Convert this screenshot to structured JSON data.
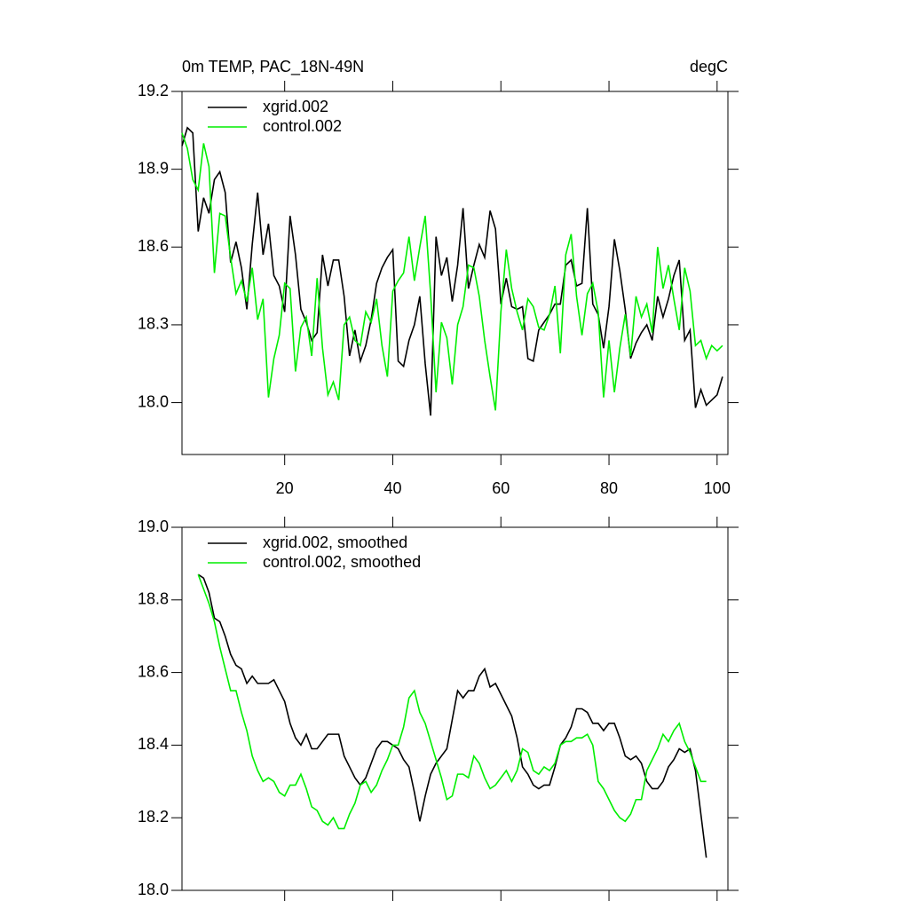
{
  "chart_data": [
    {
      "type": "line",
      "title": "0m TEMP, PAC_18N-49N",
      "units": "degC",
      "x": [
        1,
        2,
        3,
        4,
        5,
        6,
        7,
        8,
        9,
        10,
        11,
        12,
        13,
        14,
        15,
        16,
        17,
        18,
        19,
        20,
        21,
        22,
        23,
        24,
        25,
        26,
        27,
        28,
        29,
        30,
        31,
        32,
        33,
        34,
        35,
        36,
        37,
        38,
        39,
        40,
        41,
        42,
        43,
        44,
        45,
        46,
        47,
        48,
        49,
        50,
        51,
        52,
        53,
        54,
        55,
        56,
        57,
        58,
        59,
        60,
        61,
        62,
        63,
        64,
        65,
        66,
        67,
        68,
        69,
        70,
        71,
        72,
        73,
        74,
        75,
        76,
        77,
        78,
        79,
        80,
        81,
        82,
        83,
        84,
        85,
        86,
        87,
        88,
        89,
        90,
        91,
        92,
        93,
        94,
        95,
        96,
        97,
        98,
        99,
        100,
        101
      ],
      "series": [
        {
          "name": "xgrid.002",
          "color": "#000000",
          "values": [
            18.99,
            19.06,
            19.04,
            18.66,
            18.79,
            18.73,
            18.86,
            18.89,
            18.81,
            18.54,
            18.62,
            18.52,
            18.36,
            18.61,
            18.81,
            18.57,
            18.69,
            18.49,
            18.45,
            18.35,
            18.72,
            18.57,
            18.36,
            18.31,
            18.24,
            18.27,
            18.57,
            18.45,
            18.55,
            18.55,
            18.41,
            18.18,
            18.28,
            18.16,
            18.22,
            18.32,
            18.46,
            18.52,
            18.56,
            18.59,
            18.16,
            18.14,
            18.24,
            18.3,
            18.41,
            18.15,
            17.95,
            18.64,
            18.49,
            18.56,
            18.39,
            18.53,
            18.75,
            18.44,
            18.53,
            18.61,
            18.56,
            18.74,
            18.67,
            18.38,
            18.48,
            18.37,
            18.36,
            18.37,
            18.17,
            18.16,
            18.28,
            18.31,
            18.34,
            18.38,
            18.38,
            18.53,
            18.55,
            18.45,
            18.46,
            18.75,
            18.38,
            18.34,
            18.21,
            18.37,
            18.63,
            18.51,
            18.36,
            18.17,
            18.23,
            18.27,
            18.3,
            18.24,
            18.41,
            18.33,
            18.4,
            18.49,
            18.55,
            18.24,
            18.28,
            17.98,
            18.05,
            17.99,
            18.01,
            18.03,
            18.1
          ]
        },
        {
          "name": "control.002",
          "color": "#00ee00",
          "values": [
            19.04,
            18.98,
            18.86,
            18.82,
            19.0,
            18.91,
            18.5,
            18.73,
            18.72,
            18.56,
            18.42,
            18.47,
            18.39,
            18.52,
            18.32,
            18.4,
            18.02,
            18.17,
            18.26,
            18.46,
            18.44,
            18.12,
            18.29,
            18.33,
            18.18,
            18.48,
            18.21,
            18.03,
            18.08,
            18.01,
            18.3,
            18.33,
            18.24,
            18.22,
            18.35,
            18.31,
            18.4,
            18.22,
            18.1,
            18.43,
            18.47,
            18.5,
            18.64,
            18.47,
            18.6,
            18.72,
            18.42,
            18.04,
            18.31,
            18.25,
            18.07,
            18.3,
            18.37,
            18.53,
            18.52,
            18.41,
            18.24,
            18.1,
            17.97,
            18.35,
            18.59,
            18.44,
            18.35,
            18.28,
            18.4,
            18.37,
            18.29,
            18.28,
            18.34,
            18.45,
            18.19,
            18.57,
            18.65,
            18.41,
            18.26,
            18.42,
            18.46,
            18.35,
            18.02,
            18.24,
            18.04,
            18.21,
            18.34,
            18.18,
            18.41,
            18.33,
            18.38,
            18.27,
            18.6,
            18.44,
            18.53,
            18.4,
            18.28,
            18.52,
            18.43,
            18.22,
            18.24,
            18.17,
            18.22,
            18.2,
            18.22
          ]
        }
      ],
      "xlim": [
        1,
        102
      ],
      "xticks": [
        20,
        40,
        60,
        80,
        100
      ],
      "ylim": [
        17.8,
        19.2
      ],
      "yticks": [
        {
          "value": 18,
          "label": "18.0"
        },
        18.3,
        18.6,
        18.9,
        19.2
      ],
      "legend": "upper left"
    },
    {
      "type": "line",
      "x": [
        4,
        5,
        6,
        7,
        8,
        9,
        10,
        11,
        12,
        13,
        14,
        15,
        16,
        17,
        18,
        19,
        20,
        21,
        22,
        23,
        24,
        25,
        26,
        27,
        28,
        29,
        30,
        31,
        32,
        33,
        34,
        35,
        36,
        37,
        38,
        39,
        40,
        41,
        42,
        43,
        44,
        45,
        46,
        47,
        48,
        49,
        50,
        51,
        52,
        53,
        54,
        55,
        56,
        57,
        58,
        59,
        60,
        61,
        62,
        63,
        64,
        65,
        66,
        67,
        68,
        69,
        70,
        71,
        72,
        73,
        74,
        75,
        76,
        77,
        78,
        79,
        80,
        81,
        82,
        83,
        84,
        85,
        86,
        87,
        88,
        89,
        90,
        91,
        92,
        93,
        94,
        95,
        96,
        97,
        98
      ],
      "series": [
        {
          "name": "xgrid.002, smoothed",
          "color": "#000000",
          "values": [
            18.87,
            18.86,
            18.82,
            18.75,
            18.74,
            18.7,
            18.65,
            18.62,
            18.61,
            18.57,
            18.59,
            18.57,
            18.57,
            18.57,
            18.58,
            18.55,
            18.52,
            18.46,
            18.42,
            18.4,
            18.43,
            18.39,
            18.39,
            18.41,
            18.43,
            18.43,
            18.43,
            18.37,
            18.34,
            18.31,
            18.29,
            18.31,
            18.35,
            18.39,
            18.41,
            18.41,
            18.4,
            18.39,
            18.36,
            18.34,
            18.27,
            18.19,
            18.26,
            18.32,
            18.35,
            18.37,
            18.39,
            18.47,
            18.55,
            18.53,
            18.55,
            18.55,
            18.59,
            18.61,
            18.56,
            18.57,
            18.54,
            18.51,
            18.48,
            18.42,
            18.34,
            18.32,
            18.29,
            18.28,
            18.29,
            18.29,
            18.34,
            18.4,
            18.42,
            18.45,
            18.5,
            18.5,
            18.49,
            18.46,
            18.46,
            18.44,
            18.46,
            18.46,
            18.42,
            18.37,
            18.36,
            18.37,
            18.35,
            18.3,
            18.28,
            18.28,
            18.3,
            18.34,
            18.36,
            18.39,
            18.38,
            18.39,
            18.33,
            18.21,
            18.09
          ]
        },
        {
          "name": "control.002, smoothed",
          "color": "#00ee00",
          "values": [
            18.87,
            18.83,
            18.79,
            18.74,
            18.67,
            18.61,
            18.55,
            18.55,
            18.49,
            18.44,
            18.37,
            18.33,
            18.3,
            18.31,
            18.3,
            18.27,
            18.26,
            18.29,
            18.29,
            18.32,
            18.28,
            18.23,
            18.22,
            18.19,
            18.18,
            18.2,
            18.17,
            18.17,
            18.21,
            18.24,
            18.29,
            18.3,
            18.27,
            18.29,
            18.33,
            18.36,
            18.4,
            18.4,
            18.45,
            18.53,
            18.55,
            18.49,
            18.46,
            18.41,
            18.36,
            18.31,
            18.25,
            18.26,
            18.32,
            18.32,
            18.31,
            18.37,
            18.35,
            18.31,
            18.28,
            18.29,
            18.31,
            18.33,
            18.3,
            18.33,
            18.39,
            18.38,
            18.33,
            18.32,
            18.34,
            18.33,
            18.35,
            18.4,
            18.41,
            18.41,
            18.42,
            18.42,
            18.43,
            18.4,
            18.3,
            18.28,
            18.25,
            18.22,
            18.2,
            18.19,
            18.21,
            18.25,
            18.25,
            18.33,
            18.36,
            18.39,
            18.43,
            18.41,
            18.44,
            18.46,
            18.41,
            18.38,
            18.34,
            18.3,
            18.3
          ]
        }
      ],
      "xlim": [
        1,
        102
      ],
      "xticks": [
        20,
        40,
        60,
        80,
        100
      ],
      "ylim": [
        18.0,
        19.0
      ],
      "yticks": [
        {
          "value": 18,
          "label": "18.0"
        },
        18.2,
        18.4,
        18.6,
        18.8,
        {
          "value": 19,
          "label": "19.0"
        }
      ],
      "legend": "upper left"
    }
  ]
}
